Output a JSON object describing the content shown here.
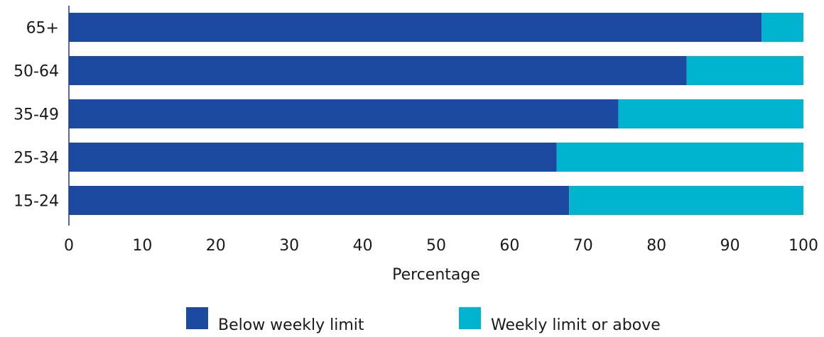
{
  "chart_data": {
    "type": "bar",
    "orientation": "horizontal",
    "stacked": true,
    "categories": [
      "65+",
      "50-64",
      "35-49",
      "25-34",
      "15-24"
    ],
    "series": [
      {
        "name": "Below weekly limit",
        "values": [
          94.3,
          84.1,
          74.8,
          66.4,
          68.1
        ],
        "color": "#1b4aa0"
      },
      {
        "name": "Weekly limit or above",
        "values": [
          5.7,
          15.9,
          25.2,
          33.6,
          31.9
        ],
        "color": "#00b4cf"
      }
    ],
    "xlabel": "Percentage",
    "xlim": [
      0,
      100
    ],
    "xticks": [
      0,
      10,
      20,
      30,
      40,
      50,
      60,
      70,
      80,
      90,
      100
    ],
    "grid": false,
    "legend_position": "bottom"
  }
}
